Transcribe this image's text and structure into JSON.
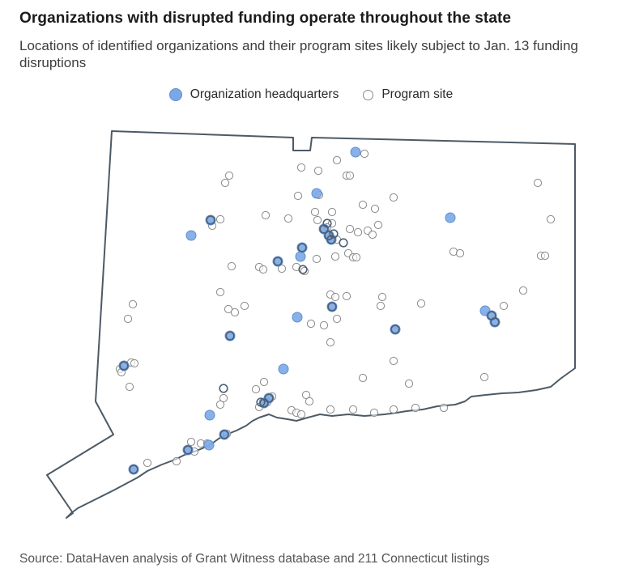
{
  "header": {
    "title": "Organizations with disrupted funding operate throughout the state",
    "subtitle": "Locations of identified organizations and their program sites likely subject to Jan. 13 funding disruptions"
  },
  "legend": {
    "hq_label": "Organization headquarters",
    "site_label": "Program site"
  },
  "footer": {
    "source": "Source: DataHaven analysis of Grant Witness database and 211 Connecticut listings"
  },
  "colors": {
    "hq_fill": "#7aa8e6",
    "hq_stroke": "#5f8fd0",
    "site_stroke": "#8a8a8a",
    "border": "#4c5a66"
  }
}
